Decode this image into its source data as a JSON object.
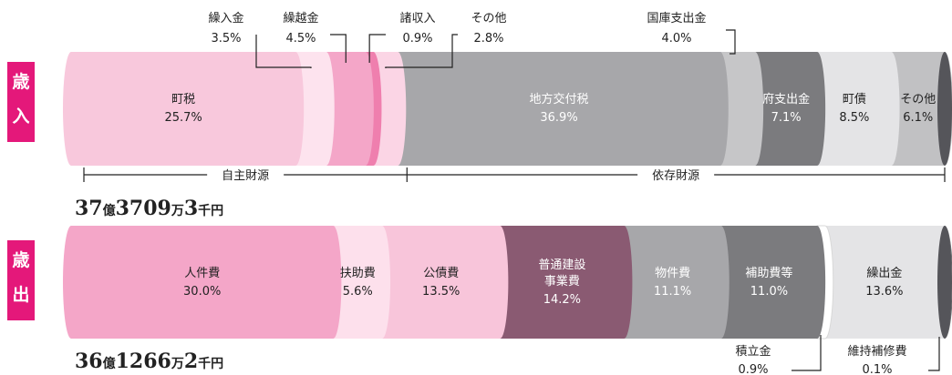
{
  "chart_data": [
    {
      "type": "bar",
      "side_label": [
        "歳",
        "入"
      ],
      "total": {
        "num1": "37",
        "u1": "億",
        "num2": "3709",
        "u2": "万",
        "num3": "3",
        "u3": "千円"
      },
      "segments": [
        {
          "name": "町税",
          "value_text": "25.7%",
          "value": 25.7,
          "color": "#f8c8dc",
          "text_color": "#222222",
          "label": "inside"
        },
        {
          "name": "繰入金",
          "value_text": "3.5%",
          "value": 3.5,
          "color": "#fde3ee",
          "text_color": "#222222",
          "label": "above"
        },
        {
          "name": "繰越金",
          "value_text": "4.5%",
          "value": 4.5,
          "color": "#f4a6c8",
          "text_color": "#222222",
          "label": "above"
        },
        {
          "name": "諸収入",
          "value_text": "0.9%",
          "value": 0.9,
          "color": "#ef7fae",
          "text_color": "#222222",
          "label": "above"
        },
        {
          "name": "その他",
          "value_text": "2.8%",
          "value": 2.8,
          "color": "#fbd5e5",
          "text_color": "#222222",
          "label": "above"
        },
        {
          "name": "地方交付税",
          "value_text": "36.9%",
          "value": 36.9,
          "color": "#a7a7aa",
          "text_color": "#ffffff",
          "label": "inside"
        },
        {
          "name": "国庫支出金",
          "value_text": "4.0%",
          "value": 4.0,
          "color": "#c6c6c8",
          "text_color": "#222222",
          "label": "above"
        },
        {
          "name": "府支出金",
          "value_text": "7.1%",
          "value": 7.1,
          "color": "#7b7b7e",
          "text_color": "#ffffff",
          "label": "inside"
        },
        {
          "name": "町債",
          "value_text": "8.5%",
          "value": 8.5,
          "color": "#e4e4e6",
          "text_color": "#222222",
          "label": "inside"
        },
        {
          "name": "その他",
          "value_text": "6.1%",
          "value": 6.1,
          "color": "#c1c1c3",
          "text_color": "#222222",
          "label": "inside"
        }
      ],
      "brackets": [
        {
          "label": "自主財源",
          "from": 0,
          "to": 5
        },
        {
          "label": "依存財源",
          "from": 5,
          "to": 10
        }
      ]
    },
    {
      "type": "bar",
      "side_label": [
        "歳",
        "出"
      ],
      "total": {
        "num1": "36",
        "u1": "億",
        "num2": "1266",
        "u2": "万",
        "num3": "2",
        "u3": "千円"
      },
      "segments": [
        {
          "name": "人件費",
          "value_text": "30.0%",
          "value": 30.0,
          "color": "#f4a6c8",
          "text_color": "#222222",
          "label": "inside"
        },
        {
          "name": "扶助費",
          "value_text": "5.6%",
          "value": 5.6,
          "color": "#fde0ec",
          "text_color": "#222222",
          "label": "inside"
        },
        {
          "name": "公債費",
          "value_text": "13.5%",
          "value": 13.5,
          "color": "#f8c5da",
          "text_color": "#222222",
          "label": "inside"
        },
        {
          "name": "普通建設\n事業費",
          "value_text": "14.2%",
          "value": 14.2,
          "color": "#8a5a72",
          "text_color": "#ffffff",
          "label": "inside"
        },
        {
          "name": "物件費",
          "value_text": "11.1%",
          "value": 11.1,
          "color": "#a7a7aa",
          "text_color": "#ffffff",
          "label": "inside"
        },
        {
          "name": "補助費等",
          "value_text": "11.0%",
          "value": 11.0,
          "color": "#7b7b7e",
          "text_color": "#ffffff",
          "label": "inside"
        },
        {
          "name": "積立金",
          "value_text": "0.9%",
          "value": 0.9,
          "color": "#ffffff",
          "text_color": "#222222",
          "label": "below"
        },
        {
          "name": "繰出金",
          "value_text": "13.6%",
          "value": 13.6,
          "color": "#e4e4e6",
          "text_color": "#222222",
          "label": "inside"
        },
        {
          "name": "維持補修費",
          "value_text": "0.1%",
          "value": 0.1,
          "color": "#6b6b6e",
          "text_color": "#222222",
          "label": "below"
        }
      ],
      "brackets": []
    }
  ]
}
